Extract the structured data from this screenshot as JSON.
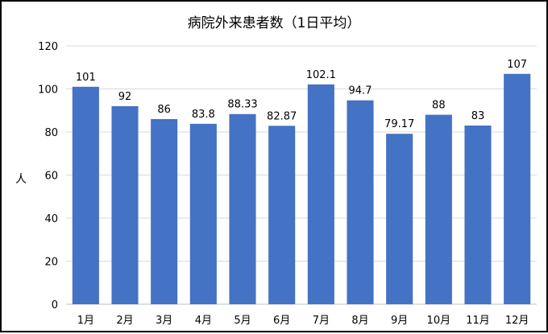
{
  "chart_data": {
    "type": "bar",
    "title": "病院外来患者数（1日平均）",
    "xlabel": "",
    "ylabel": "人",
    "ylim": [
      0,
      120
    ],
    "yticks": [
      0,
      20,
      40,
      60,
      80,
      100,
      120
    ],
    "grid": true,
    "categories": [
      "1月",
      "2月",
      "3月",
      "4月",
      "5月",
      "6月",
      "7月",
      "8月",
      "9月",
      "10月",
      "11月",
      "12月"
    ],
    "values": [
      101,
      92,
      86,
      83.8,
      88.33,
      82.87,
      102.1,
      94.7,
      79.17,
      88,
      83,
      107
    ],
    "value_labels": [
      "101",
      "92",
      "86",
      "83.8",
      "88.33",
      "82.87",
      "102.1",
      "94.7",
      "79.17",
      "88",
      "83",
      "107"
    ],
    "colors": {
      "bar": "#4472C4",
      "grid": "#D9D9D9",
      "axis": "#BFBFBF"
    }
  }
}
